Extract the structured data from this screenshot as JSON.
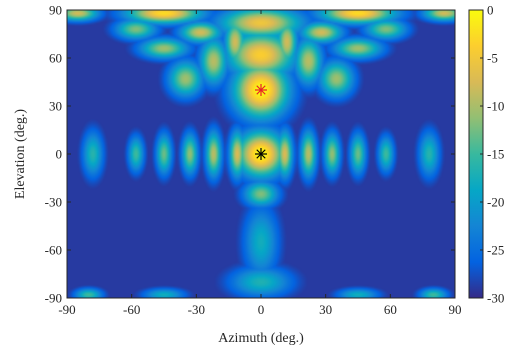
{
  "chart_data": {
    "type": "heatmap",
    "title": "",
    "xlabel": "Azimuth (deg.)",
    "ylabel": "Elevation (deg.)",
    "xlim": [
      -90,
      90
    ],
    "ylim": [
      -90,
      90
    ],
    "x_ticks": [
      -90,
      -60,
      -30,
      0,
      30,
      60,
      90
    ],
    "y_ticks": [
      -90,
      -60,
      -30,
      0,
      30,
      60,
      90
    ],
    "colorbar": {
      "range": [
        -30,
        0
      ],
      "ticks": [
        0,
        -5,
        -10,
        -15,
        -20,
        -25,
        -30
      ],
      "colormap": "parula",
      "colors": [
        "#352a87",
        "#0363e1",
        "#1485d4",
        "#06a7c6",
        "#38b99e",
        "#92bf73",
        "#d9ba56",
        "#fcce2e",
        "#f9fb0e"
      ]
    },
    "markers": [
      {
        "azimuth": 0,
        "elevation": 40,
        "symbol": "asterisk",
        "color": "#e8202a"
      },
      {
        "azimuth": 0,
        "elevation": 0,
        "symbol": "asterisk",
        "color": "#000000"
      }
    ],
    "lobes": [
      {
        "az": 0,
        "el": 0,
        "saz": 7,
        "sel": 9,
        "level": 1.0
      },
      {
        "az": 0,
        "el": 40,
        "saz": 8,
        "sel": 11,
        "level": 1.0
      },
      {
        "az": 0,
        "el": 62,
        "saz": 10,
        "sel": 9,
        "level": 0.85
      },
      {
        "az": 0,
        "el": 82,
        "saz": 12,
        "sel": 6,
        "level": 0.8
      },
      {
        "az": -45,
        "el": 88,
        "saz": 11,
        "sel": 4,
        "level": 0.9
      },
      {
        "az": 45,
        "el": 88,
        "saz": 11,
        "sel": 4,
        "level": 0.9
      },
      {
        "az": -85,
        "el": 88,
        "saz": 6,
        "sel": 3,
        "level": 0.7
      },
      {
        "az": 85,
        "el": 88,
        "saz": 6,
        "sel": 3,
        "level": 0.7
      },
      {
        "az": 0,
        "el": -25,
        "saz": 5,
        "sel": 5,
        "level": 0.55
      },
      {
        "az": 0,
        "el": -55,
        "saz": 5,
        "sel": 14,
        "level": 0.35
      },
      {
        "az": 0,
        "el": -80,
        "saz": 9,
        "sel": 6,
        "level": 0.38
      },
      {
        "az": -11,
        "el": 0,
        "saz": 2.3,
        "sel": 9,
        "level": 0.72
      },
      {
        "az": 11,
        "el": 0,
        "saz": 2.3,
        "sel": 9,
        "level": 0.72
      },
      {
        "az": -22,
        "el": 0,
        "saz": 2.3,
        "sel": 9,
        "level": 0.65
      },
      {
        "az": 22,
        "el": 0,
        "saz": 2.3,
        "sel": 9,
        "level": 0.65
      },
      {
        "az": -33,
        "el": 0,
        "saz": 2.3,
        "sel": 8,
        "level": 0.58
      },
      {
        "az": 33,
        "el": 0,
        "saz": 2.3,
        "sel": 8,
        "level": 0.58
      },
      {
        "az": -45,
        "el": 0,
        "saz": 2.3,
        "sel": 8,
        "level": 0.52
      },
      {
        "az": 45,
        "el": 0,
        "saz": 2.3,
        "sel": 8,
        "level": 0.52
      },
      {
        "az": -58,
        "el": 0,
        "saz": 2.3,
        "sel": 7,
        "level": 0.45
      },
      {
        "az": 58,
        "el": 0,
        "saz": 2.3,
        "sel": 7,
        "level": 0.45
      },
      {
        "az": -78,
        "el": 0,
        "saz": 3,
        "sel": 9,
        "level": 0.4
      },
      {
        "az": 78,
        "el": 0,
        "saz": 3,
        "sel": 9,
        "level": 0.4
      },
      {
        "az": -12,
        "el": 70,
        "saz": 3,
        "sel": 9,
        "level": 0.7
      },
      {
        "az": 12,
        "el": 70,
        "saz": 3,
        "sel": 9,
        "level": 0.7
      },
      {
        "az": -22,
        "el": 58,
        "saz": 4,
        "sel": 9,
        "level": 0.65
      },
      {
        "az": 22,
        "el": 58,
        "saz": 4,
        "sel": 9,
        "level": 0.65
      },
      {
        "az": -35,
        "el": 47,
        "saz": 5,
        "sel": 7,
        "level": 0.6
      },
      {
        "az": 35,
        "el": 47,
        "saz": 5,
        "sel": 7,
        "level": 0.6
      },
      {
        "az": -28,
        "el": 76,
        "saz": 6,
        "sel": 4,
        "level": 0.7
      },
      {
        "az": 28,
        "el": 76,
        "saz": 6,
        "sel": 4,
        "level": 0.7
      },
      {
        "az": -45,
        "el": 66,
        "saz": 7,
        "sel": 4,
        "level": 0.6
      },
      {
        "az": 45,
        "el": 66,
        "saz": 7,
        "sel": 4,
        "level": 0.6
      },
      {
        "az": -58,
        "el": 78,
        "saz": 6,
        "sel": 4,
        "level": 0.55
      },
      {
        "az": 58,
        "el": 78,
        "saz": 6,
        "sel": 4,
        "level": 0.55
      },
      {
        "az": -80,
        "el": -88,
        "saz": 4,
        "sel": 2.5,
        "level": 0.45
      },
      {
        "az": 80,
        "el": -88,
        "saz": 4,
        "sel": 2.5,
        "level": 0.45
      },
      {
        "az": -45,
        "el": -88,
        "saz": 6,
        "sel": 2.5,
        "level": 0.35
      },
      {
        "az": 45,
        "el": -88,
        "saz": 6,
        "sel": 2.5,
        "level": 0.35
      }
    ]
  }
}
